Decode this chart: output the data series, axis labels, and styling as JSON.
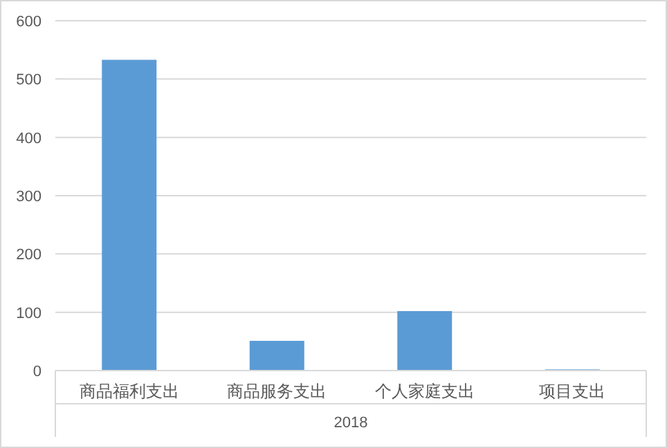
{
  "chart_data": {
    "type": "bar",
    "xlabel": "2018",
    "categories": [
      "商品福利支出",
      "商品服务支出",
      "个人家庭支出",
      "项目支出"
    ],
    "series": [
      {
        "color": "#5b9bd5",
        "values": [
          533,
          51,
          102,
          2
        ]
      }
    ],
    "ylim": [
      0,
      600
    ],
    "yticks": [
      0,
      100,
      200,
      300,
      400,
      500,
      600
    ],
    "grid": "y"
  }
}
